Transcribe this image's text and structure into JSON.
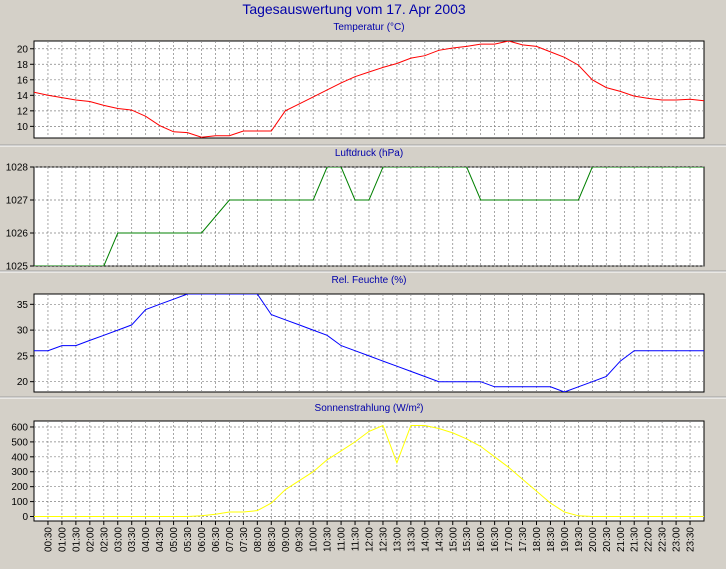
{
  "page_title": "Tagesauswertung vom 17. Apr 2003",
  "colors": {
    "background": "#d4d0c8",
    "panel": "#ffffff",
    "title": "#0000aa",
    "grid": "#808080",
    "temperature": "#ff0000",
    "pressure": "#008000",
    "humidity": "#0000ff",
    "radiation": "#ffff00"
  },
  "x_axis": {
    "ticks": [
      "00:30",
      "01:00",
      "01:30",
      "02:00",
      "02:30",
      "03:00",
      "03:30",
      "04:00",
      "04:30",
      "05:00",
      "05:30",
      "06:00",
      "06:30",
      "07:00",
      "07:30",
      "08:00",
      "08:30",
      "09:00",
      "09:30",
      "10:00",
      "10:30",
      "11:00",
      "11:30",
      "12:00",
      "12:30",
      "13:00",
      "13:30",
      "14:00",
      "14:30",
      "15:00",
      "15:30",
      "16:00",
      "16:30",
      "17:00",
      "17:30",
      "18:00",
      "18:30",
      "19:00",
      "19:30",
      "20:00",
      "20:30",
      "21:00",
      "21:30",
      "22:00",
      "22:30",
      "23:00",
      "23:30"
    ]
  },
  "chart_data": [
    {
      "type": "line",
      "title": "Temperatur (°C)",
      "ylim": [
        8.5,
        21
      ],
      "yticks": [
        10,
        12,
        14,
        16,
        18,
        20
      ],
      "grid": true,
      "series": [
        {
          "color": "#ff0000",
          "x": [
            "00:00",
            "00:30",
            "01:00",
            "01:30",
            "02:00",
            "02:30",
            "03:00",
            "03:30",
            "04:00",
            "04:30",
            "05:00",
            "05:30",
            "06:00",
            "06:30",
            "07:00",
            "07:30",
            "08:00",
            "08:30",
            "09:00",
            "09:30",
            "10:00",
            "10:30",
            "11:00",
            "11:30",
            "12:00",
            "12:30",
            "13:00",
            "13:30",
            "14:00",
            "14:30",
            "15:00",
            "15:30",
            "16:00",
            "16:30",
            "17:00",
            "17:30",
            "18:00",
            "18:30",
            "19:00",
            "19:30",
            "20:00",
            "20:30",
            "21:00",
            "21:30",
            "22:00",
            "22:30",
            "23:00",
            "23:30",
            "24:00"
          ],
          "values": [
            14.4,
            14.0,
            13.7,
            13.4,
            13.2,
            12.7,
            12.3,
            12.1,
            11.3,
            10.1,
            9.3,
            9.2,
            8.6,
            8.8,
            8.8,
            9.4,
            9.4,
            9.4,
            12.0,
            12.9,
            13.8,
            14.7,
            15.6,
            16.4,
            17.0,
            17.6,
            18.1,
            18.8,
            19.1,
            19.8,
            20.1,
            20.3,
            20.6,
            20.6,
            21.0,
            20.5,
            20.3,
            19.6,
            18.9,
            17.9,
            16.0,
            15.0,
            14.5,
            13.9,
            13.6,
            13.4,
            13.4,
            13.5,
            13.3
          ]
        }
      ]
    },
    {
      "type": "line",
      "title": "Luftdruck (hPa)",
      "ylim": [
        1025,
        1028
      ],
      "yticks": [
        1025,
        1026,
        1027,
        1028
      ],
      "grid": true,
      "series": [
        {
          "color": "#008000",
          "x": [
            "00:00",
            "02:30",
            "03:00",
            "06:00",
            "07:00",
            "10:00",
            "10:30",
            "11:00",
            "11:30",
            "12:00",
            "12:30",
            "15:30",
            "16:00",
            "19:30",
            "20:00",
            "24:00"
          ],
          "values": [
            1025,
            1025,
            1026,
            1026,
            1027,
            1027,
            1028,
            1028,
            1027,
            1027,
            1028,
            1028,
            1027,
            1027,
            1028,
            1028
          ]
        }
      ]
    },
    {
      "type": "line",
      "title": "Rel. Feuchte (%)",
      "ylim": [
        18,
        37
      ],
      "yticks": [
        20,
        25,
        30,
        35
      ],
      "grid": true,
      "series": [
        {
          "color": "#0000ff",
          "x": [
            "00:00",
            "00:30",
            "01:00",
            "01:30",
            "02:00",
            "02:30",
            "03:00",
            "03:30",
            "04:00",
            "04:30",
            "05:00",
            "05:30",
            "06:00",
            "06:30",
            "07:00",
            "07:30",
            "08:00",
            "08:30",
            "09:00",
            "09:30",
            "10:00",
            "10:30",
            "11:00",
            "11:30",
            "12:00",
            "12:30",
            "13:00",
            "13:30",
            "14:00",
            "14:30",
            "15:00",
            "15:30",
            "16:00",
            "16:30",
            "17:00",
            "17:30",
            "18:00",
            "18:30",
            "19:00",
            "19:30",
            "20:00",
            "20:30",
            "21:00",
            "21:30",
            "22:00",
            "22:30",
            "23:00",
            "23:30",
            "24:00"
          ],
          "values": [
            26,
            26,
            27,
            27,
            28,
            29,
            30,
            31,
            34,
            35,
            36,
            37,
            37,
            37,
            37,
            37,
            37,
            33,
            32,
            31,
            30,
            29,
            27,
            26,
            25,
            24,
            23,
            22,
            21,
            20,
            20,
            20,
            20,
            19,
            19,
            19,
            19,
            19,
            18,
            19,
            20,
            21,
            24,
            26,
            26,
            26,
            26,
            26,
            26
          ]
        }
      ]
    },
    {
      "type": "area",
      "title": "Sonnenstrahlung (W/m²)",
      "ylim": [
        -30,
        640
      ],
      "yticks": [
        0,
        100,
        200,
        300,
        400,
        500,
        600
      ],
      "grid": true,
      "series": [
        {
          "color": "#ffff00",
          "x": [
            "00:00",
            "05:30",
            "06:00",
            "06:30",
            "07:00",
            "07:30",
            "08:00",
            "08:30",
            "09:00",
            "09:30",
            "10:00",
            "10:30",
            "11:00",
            "11:30",
            "12:00",
            "12:30",
            "13:00",
            "13:30",
            "14:00",
            "14:30",
            "15:00",
            "15:30",
            "16:00",
            "16:30",
            "17:00",
            "17:30",
            "18:00",
            "18:30",
            "19:00",
            "19:30",
            "20:00",
            "24:00"
          ],
          "values": [
            0,
            0,
            5,
            15,
            30,
            30,
            40,
            90,
            180,
            240,
            300,
            380,
            440,
            500,
            570,
            610,
            360,
            610,
            610,
            590,
            560,
            520,
            470,
            400,
            330,
            250,
            170,
            90,
            30,
            5,
            0,
            0
          ]
        }
      ]
    }
  ]
}
